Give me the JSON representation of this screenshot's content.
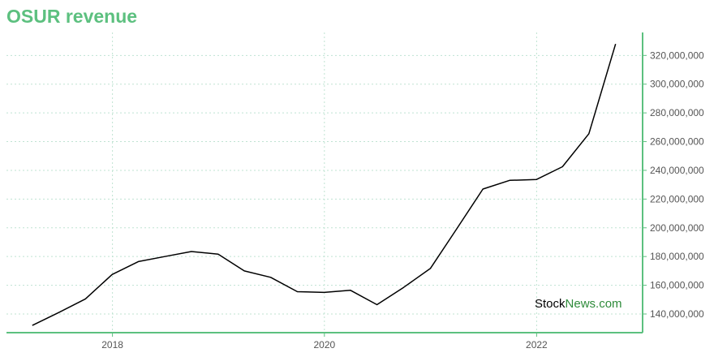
{
  "chart_data": {
    "type": "line",
    "title": "OSUR revenue",
    "xlabel": "",
    "ylabel": "",
    "x_ticks": [
      "2018",
      "2020",
      "2022"
    ],
    "y_ticks": [
      "140,000,000",
      "160,000,000",
      "180,000,000",
      "200,000,000",
      "220,000,000",
      "240,000,000",
      "260,000,000",
      "280,000,000",
      "300,000,000",
      "320,000,000"
    ],
    "ylim": [
      127000000,
      336000000
    ],
    "xlim": [
      "2017-01-01",
      "2023-01-01"
    ],
    "grid": true,
    "series": [
      {
        "name": "",
        "color": "#000000",
        "points": [
          {
            "x": "2017-03-31",
            "y": 132000000
          },
          {
            "x": "2017-06-30",
            "y": 141000000
          },
          {
            "x": "2017-09-30",
            "y": 150500000
          },
          {
            "x": "2017-12-31",
            "y": 167500000
          },
          {
            "x": "2018-03-31",
            "y": 176500000
          },
          {
            "x": "2018-06-30",
            "y": 180000000
          },
          {
            "x": "2018-09-30",
            "y": 183500000
          },
          {
            "x": "2018-12-31",
            "y": 181700000
          },
          {
            "x": "2019-03-31",
            "y": 170000000
          },
          {
            "x": "2019-06-30",
            "y": 165500000
          },
          {
            "x": "2019-09-30",
            "y": 155500000
          },
          {
            "x": "2019-12-31",
            "y": 155000000
          },
          {
            "x": "2020-03-31",
            "y": 156500000
          },
          {
            "x": "2020-06-30",
            "y": 146500000
          },
          {
            "x": "2020-09-30",
            "y": 158500000
          },
          {
            "x": "2020-12-31",
            "y": 171700000
          },
          {
            "x": "2021-03-31",
            "y": 199000000
          },
          {
            "x": "2021-06-30",
            "y": 227000000
          },
          {
            "x": "2021-09-30",
            "y": 233000000
          },
          {
            "x": "2021-12-31",
            "y": 233600000
          },
          {
            "x": "2022-03-31",
            "y": 242500000
          },
          {
            "x": "2022-06-30",
            "y": 265500000
          },
          {
            "x": "2022-09-30",
            "y": 328000000
          }
        ]
      }
    ]
  },
  "watermark": {
    "part1": "Stock",
    "part2": "News",
    "part3": ".com"
  },
  "colors": {
    "title": "#5cc07f",
    "axis": "#5cc07f",
    "grid": "#bfe3d2",
    "line": "#000000",
    "watermark_dark": "#000000",
    "watermark_green": "#2e8b3a"
  }
}
